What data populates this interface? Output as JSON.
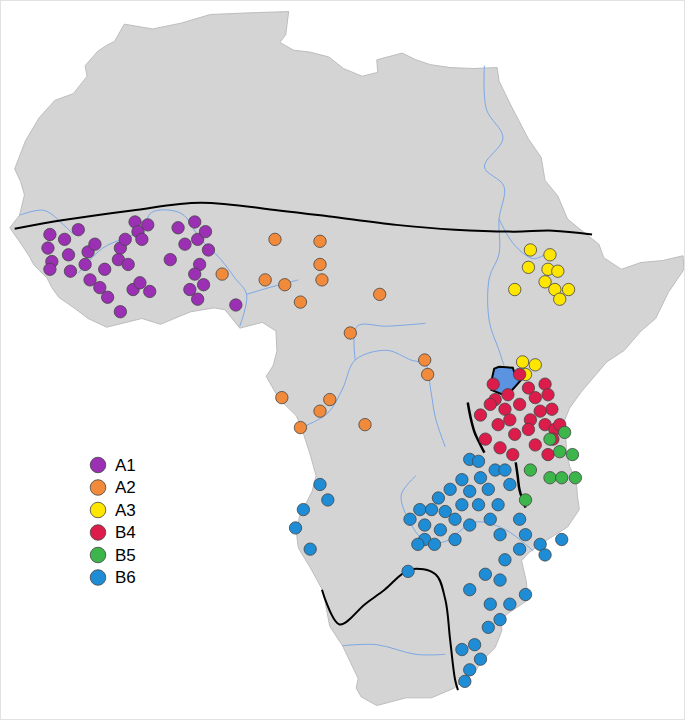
{
  "chart_data": {
    "type": "scatter",
    "tick_labels": false,
    "legend": "left",
    "marker": "circle",
    "xlim": [
      -18.5,
      51.5
    ],
    "ylim": [
      -36.3,
      38.3
    ],
    "series": [
      {
        "name": "A1",
        "color": "#9b30b5",
        "x": [
          -13.4,
          -13.6,
          -13.2,
          -13.4,
          -11.9,
          -11.5,
          -11.3,
          -10.5,
          -9.8,
          -9.5,
          -8.8,
          -9.3,
          -8.3,
          -7.8,
          -7.5,
          -6.2,
          -6.4,
          -6.2,
          -5.7,
          -5.4,
          -4.9,
          -4.7,
          -4.4,
          -4.0,
          -3.4,
          -3.2,
          -4.2,
          -1.1,
          -0.3,
          0.4,
          1.4,
          1.7,
          2.5,
          2.8,
          1.9,
          1.4,
          1.7,
          0.9,
          2.3,
          5.6
        ],
        "values": [
          14.0,
          12.6,
          11.2,
          10.4,
          13.5,
          11.9,
          10.2,
          14.5,
          10.9,
          12.2,
          13.0,
          9.3,
          8.5,
          10.4,
          7.5,
          6.0,
          11.4,
          12.6,
          13.5,
          10.9,
          8.3,
          15.3,
          14.3,
          13.5,
          15.0,
          8.1,
          9.0,
          11.4,
          14.7,
          13.0,
          15.3,
          13.5,
          14.3,
          12.4,
          10.9,
          9.9,
          7.3,
          8.3,
          8.8,
          6.7
        ]
      },
      {
        "name": "A2",
        "color": "#f28a3c",
        "x": [
          9.6,
          14.2,
          4.2,
          8.6,
          10.6,
          14.2,
          14.4,
          12.2,
          20.3,
          17.3,
          24.9,
          25.2,
          10.3,
          15.2,
          14.2,
          12.2,
          18.8
        ],
        "values": [
          13.5,
          13.3,
          9.9,
          9.3,
          8.8,
          10.9,
          9.3,
          7.0,
          7.8,
          3.8,
          1.0,
          -0.5,
          -2.9,
          -3.1,
          -4.3,
          -6.0,
          -5.7
        ]
      },
      {
        "name": "A3",
        "color": "#ffe600",
        "x": [
          35.7,
          37.7,
          35.5,
          37.5,
          38.5,
          37.2,
          34.1,
          38.2,
          39.6,
          38.7,
          34.9,
          36.2,
          35.2
        ],
        "values": [
          12.4,
          11.9,
          10.6,
          10.4,
          10.2,
          9.1,
          8.3,
          8.3,
          8.3,
          7.3,
          0.8,
          0.5,
          -0.5
        ]
      },
      {
        "name": "B4",
        "color": "#dc1c4b",
        "x": [
          34.6,
          35.5,
          37.2,
          33.4,
          32.1,
          31.6,
          33.1,
          34.6,
          36.2,
          37.5,
          37.9,
          36.7,
          35.7,
          33.6,
          32.4,
          34.1,
          35.5,
          37.2,
          38.2,
          31.1,
          30.6,
          31.9,
          38.0,
          32.6,
          36.2,
          33.9,
          37.5,
          38.7
        ],
        "values": [
          -0.5,
          -1.9,
          -1.5,
          -2.6,
          -3.1,
          -3.6,
          -4.1,
          -3.6,
          -2.9,
          -2.6,
          -4.1,
          -4.3,
          -5.2,
          -5.2,
          -5.7,
          -6.7,
          -6.2,
          -5.7,
          -6.2,
          -7.2,
          -4.7,
          -1.5,
          -7.2,
          -8.1,
          -7.8,
          -8.8,
          -8.8,
          -5.7
        ]
      },
      {
        "name": "B5",
        "color": "#3cb54a",
        "x": [
          39.2,
          37.7,
          38.7,
          40.0,
          35.7,
          37.7,
          38.9,
          40.3,
          35.2
        ],
        "values": [
          -6.5,
          -7.2,
          -8.5,
          -8.8,
          -10.4,
          -11.2,
          -11.2,
          -11.2,
          -13.5
        ]
      },
      {
        "name": "B6",
        "color": "#1f8dd6",
        "x": [
          14.2,
          15.0,
          12.5,
          11.7,
          13.2,
          23.2,
          24.4,
          24.9,
          23.4,
          25.6,
          26.3,
          27.0,
          27.5,
          28.7,
          29.5,
          30.6,
          31.4,
          30.4,
          28.7,
          28.0,
          26.5,
          24.9,
          24.2,
          25.9,
          28.0,
          29.5,
          31.6,
          32.4,
          32.1,
          33.1,
          33.6,
          29.5,
          30.4,
          32.6,
          34.6,
          35.2,
          34.6,
          36.7,
          37.2,
          38.9,
          33.1,
          32.6,
          31.1,
          29.5,
          31.6,
          33.6,
          32.6,
          31.4,
          30.0,
          28.7,
          30.6,
          29.5,
          29.0,
          35.2
        ],
        "values": [
          -11.9,
          -13.5,
          -14.5,
          -16.4,
          -18.6,
          -20.9,
          -14.5,
          -16.1,
          -15.5,
          -14.5,
          -13.3,
          -14.7,
          -12.4,
          -11.4,
          -12.6,
          -11.2,
          -12.4,
          -14.0,
          -14.0,
          -15.5,
          -16.6,
          -17.6,
          -18.1,
          -18.1,
          -17.6,
          -16.1,
          -15.5,
          -14.0,
          -10.4,
          -10.4,
          -11.9,
          -9.3,
          -9.5,
          -17.1,
          -15.5,
          -17.1,
          -18.6,
          -18.1,
          -19.2,
          -17.6,
          -19.7,
          -21.8,
          -21.2,
          -22.8,
          -24.3,
          -24.3,
          -25.9,
          -26.7,
          -28.5,
          -29.0,
          -30.0,
          -31.1,
          -32.3,
          -23.3
        ]
      }
    ]
  }
}
